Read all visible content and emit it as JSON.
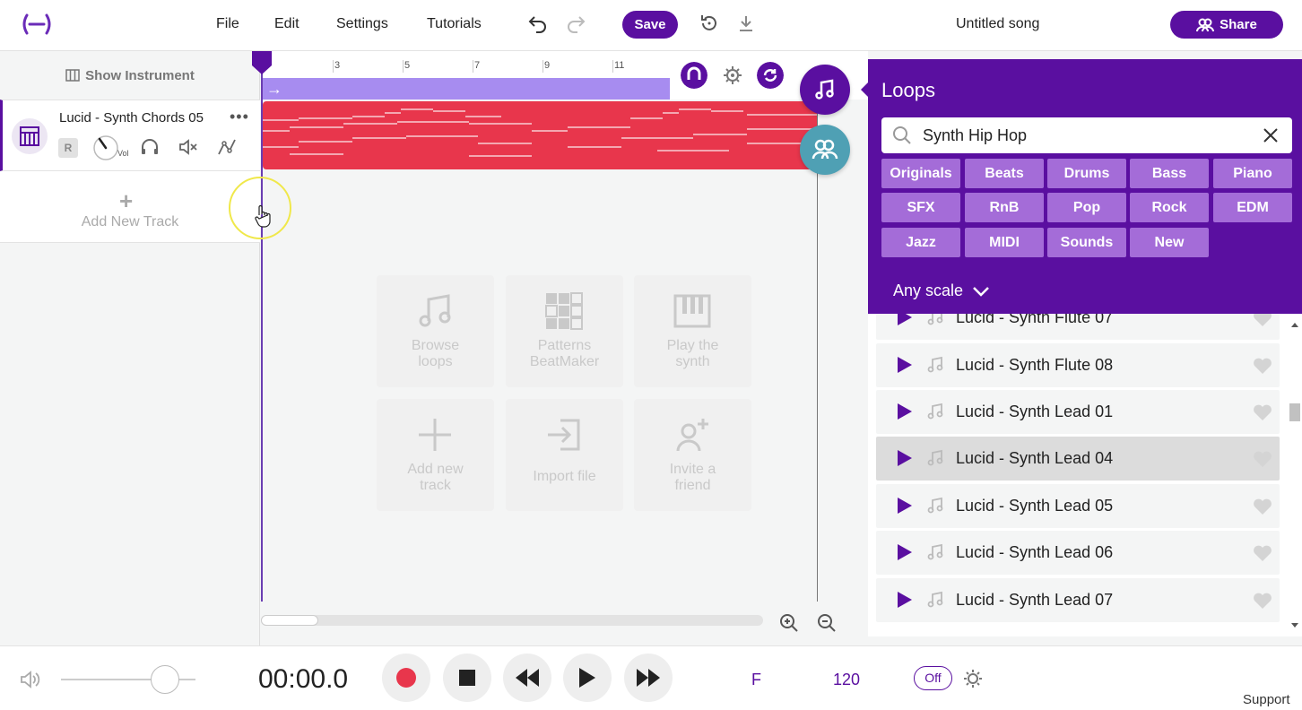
{
  "header": {
    "menu": [
      "File",
      "Edit",
      "Settings",
      "Tutorials"
    ],
    "save_label": "Save",
    "song_title": "Untitled song",
    "share_label": "Share"
  },
  "left_panel": {
    "show_instrument": "Show Instrument",
    "track": {
      "name": "Lucid - Synth Chords 05",
      "more": "•••",
      "rec": "R",
      "vol_label": "Vol"
    },
    "add_track_plus": "+",
    "add_track_label": "Add New Track"
  },
  "timeline": {
    "ruler_ticks": [
      "3",
      "5",
      "7",
      "9",
      "11"
    ]
  },
  "quick_actions": [
    {
      "label1": "Browse",
      "label2": "loops",
      "icon": "music-note-icon"
    },
    {
      "label1": "Patterns",
      "label2": "BeatMaker",
      "icon": "grid-icon"
    },
    {
      "label1": "Play the",
      "label2": "synth",
      "icon": "piano-icon"
    },
    {
      "label1": "Add new",
      "label2": "track",
      "icon": "plus-icon"
    },
    {
      "label1": "Import file",
      "label2": "",
      "icon": "import-icon"
    },
    {
      "label1": "Invite a",
      "label2": "friend",
      "icon": "invite-icon"
    }
  ],
  "loops": {
    "title": "Loops",
    "search_value": "Synth Hip Hop",
    "chips": [
      "Originals",
      "Beats",
      "Drums",
      "Bass",
      "Piano",
      "SFX",
      "RnB",
      "Pop",
      "Rock",
      "EDM",
      "Jazz",
      "MIDI",
      "Sounds",
      "New"
    ],
    "scale": "Any scale",
    "items": [
      {
        "name": "Lucid - Synth Flute 07",
        "active": false
      },
      {
        "name": "Lucid - Synth Flute 08",
        "active": false
      },
      {
        "name": "Lucid - Synth Lead 01",
        "active": false
      },
      {
        "name": "Lucid - Synth Lead 04",
        "active": true
      },
      {
        "name": "Lucid - Synth Lead 05",
        "active": false
      },
      {
        "name": "Lucid - Synth Lead 06",
        "active": false
      },
      {
        "name": "Lucid - Synth Lead 07",
        "active": false
      }
    ]
  },
  "transport": {
    "time": "00:00.0",
    "key": "F",
    "bpm": "120",
    "metronome": "Off",
    "support": "Support"
  },
  "colors": {
    "brand": "#5a0fa0",
    "clip": "#e8364c",
    "loop_bar": "#a78cf0",
    "chip": "#a46cd8",
    "collab": "#4fa0b4"
  }
}
